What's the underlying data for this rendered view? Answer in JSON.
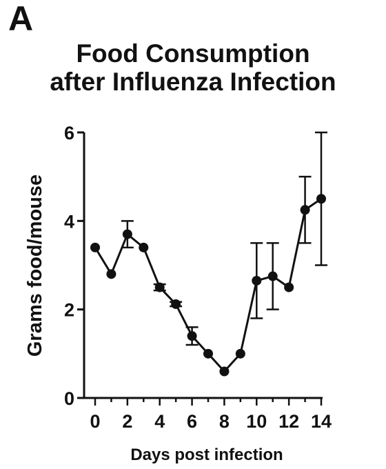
{
  "panel_label": "A",
  "chart_data": {
    "type": "line",
    "title_line1": "Food Consumption",
    "title_line2": "after Influenza Infection",
    "title": "Food Consumption after Influenza Infection",
    "xlabel": "Days post infection",
    "ylabel": "Grams food/mouse",
    "xlim": [
      0,
      14
    ],
    "ylim": [
      0,
      6
    ],
    "x_ticks": [
      0,
      2,
      4,
      6,
      8,
      10,
      12,
      14
    ],
    "y_ticks": [
      0,
      2,
      4,
      6
    ],
    "grid": false,
    "legend": "none",
    "series": [
      {
        "x": [
          0,
          1,
          2,
          3,
          4,
          5,
          6,
          7,
          8,
          9,
          10,
          11,
          12,
          13,
          14
        ],
        "values": [
          3.4,
          2.8,
          3.7,
          3.4,
          2.5,
          2.12,
          1.4,
          1.0,
          0.6,
          1.0,
          2.65,
          2.75,
          2.5,
          4.25,
          4.5
        ],
        "error": [
          0,
          0,
          0.3,
          0,
          0.07,
          0.05,
          0.2,
          0,
          0,
          0,
          0.85,
          0.75,
          0,
          0.75,
          1.5
        ]
      }
    ],
    "color": "#111111"
  }
}
